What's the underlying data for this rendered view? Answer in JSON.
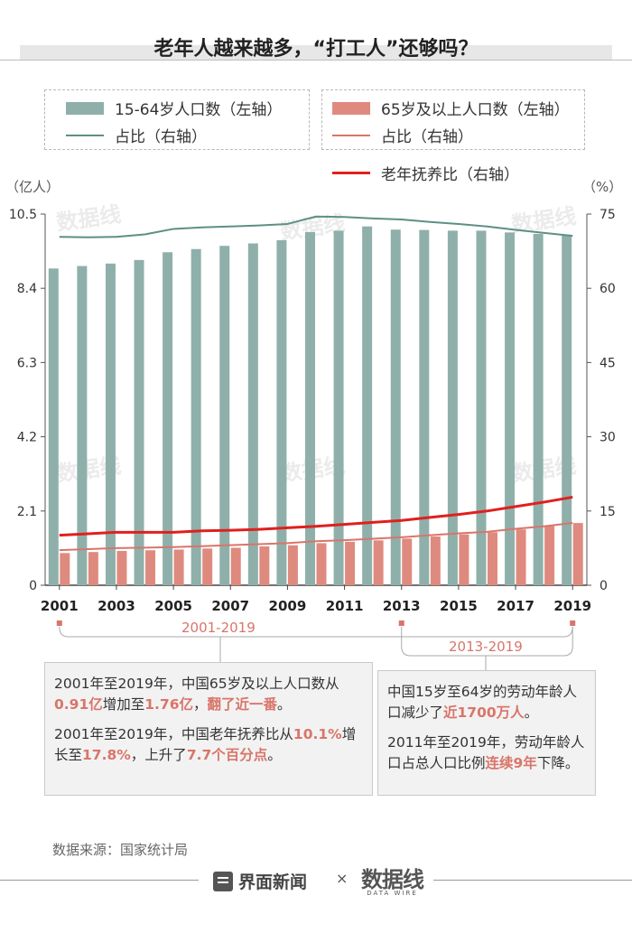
{
  "title": "老年人越来越多，“打工人”还够吗？",
  "legend": {
    "working_age": "15-64岁人口数（左轴）",
    "working_share": "占比（右轴）",
    "elderly": "65岁及以上人口数（左轴）",
    "elderly_share": "占比（右轴）",
    "dependency": "老年抚养比（右轴）"
  },
  "units": {
    "left": "（亿人）",
    "right": "（%）"
  },
  "colors": {
    "working_bar": "#8fb0aa",
    "working_line": "#5e8f85",
    "elderly_bar": "#df8a7e",
    "elderly_line": "#d9756a",
    "dependency_line": "#e0201e",
    "highlight": "#d9756a"
  },
  "chart_data": {
    "type": "bar",
    "x": [
      2001,
      2002,
      2003,
      2004,
      2005,
      2006,
      2007,
      2008,
      2009,
      2010,
      2011,
      2012,
      2013,
      2014,
      2015,
      2016,
      2017,
      2018,
      2019
    ],
    "x_tick_labels": [
      "2001",
      "2003",
      "2005",
      "2007",
      "2009",
      "2011",
      "2013",
      "2015",
      "2017",
      "2019"
    ],
    "left_axis": {
      "ticks": [
        "0",
        "2.1",
        "4.2",
        "6.3",
        "8.4",
        "10.5"
      ],
      "ylim": [
        0,
        10.5
      ]
    },
    "right_axis": {
      "ticks": [
        "0",
        "15",
        "30",
        "45",
        "60",
        "75"
      ],
      "ylim": [
        0,
        75
      ]
    },
    "grid": false,
    "series": [
      {
        "name": "15-64岁人口数（左轴）",
        "type": "bar",
        "axis": "left",
        "values": [
          8.96,
          9.03,
          9.1,
          9.2,
          9.42,
          9.51,
          9.6,
          9.67,
          9.76,
          9.99,
          10.03,
          10.15,
          10.06,
          10.05,
          10.03,
          10.03,
          9.98,
          9.94,
          9.89
        ]
      },
      {
        "name": "占比（右轴）",
        "type": "line",
        "axis": "right",
        "values": [
          70.4,
          70.3,
          70.4,
          70.9,
          72.0,
          72.3,
          72.5,
          72.7,
          73.0,
          74.5,
          74.4,
          74.1,
          73.9,
          73.4,
          73.0,
          72.5,
          71.8,
          71.2,
          70.6
        ]
      },
      {
        "name": "65岁及以上人口数（左轴）",
        "type": "bar",
        "axis": "left",
        "values": [
          0.91,
          0.94,
          0.97,
          0.99,
          1.01,
          1.04,
          1.06,
          1.1,
          1.13,
          1.19,
          1.23,
          1.27,
          1.32,
          1.38,
          1.44,
          1.5,
          1.58,
          1.67,
          1.76
        ]
      },
      {
        "name": "占比（右轴）",
        "type": "line",
        "axis": "right",
        "values": [
          7.1,
          7.3,
          7.5,
          7.6,
          7.7,
          7.9,
          8.1,
          8.3,
          8.5,
          8.9,
          9.1,
          9.4,
          9.7,
          10.1,
          10.5,
          10.8,
          11.4,
          11.9,
          12.6
        ]
      },
      {
        "name": "老年抚养比（右轴）",
        "type": "line",
        "axis": "right",
        "values": [
          10.1,
          10.4,
          10.7,
          10.7,
          10.7,
          11.0,
          11.1,
          11.3,
          11.6,
          11.9,
          12.3,
          12.7,
          13.1,
          13.7,
          14.3,
          15.0,
          15.9,
          16.8,
          17.8
        ]
      }
    ]
  },
  "ranges": {
    "left": "2001-2019",
    "right": "2013-2019"
  },
  "notes": {
    "left_p1": [
      "2001年至2019年，中国65岁及以上人口数从",
      "0.91亿",
      "增加至",
      "1.76亿",
      "，",
      "翻了近一番",
      "。"
    ],
    "left_p2": [
      "2001年至2019年，中国老年抚养比从",
      "10.1%",
      "增长至",
      "17.8%",
      "，上升了",
      "7.7个百分点",
      "。"
    ],
    "right_p1": [
      "中国15岁至64岁的劳动年龄人口减少了",
      "近1700万人",
      "。"
    ],
    "right_p2": [
      "2011年至2019年，劳动年龄人口占总人口比例",
      "连续9年",
      "下降。"
    ]
  },
  "source": "数据来源：国家统计局",
  "footer": {
    "brand": "界面新闻",
    "times": "×",
    "partner": "数据线",
    "partner_sub": "DATA WIRE"
  },
  "watermark_text": "数据线"
}
